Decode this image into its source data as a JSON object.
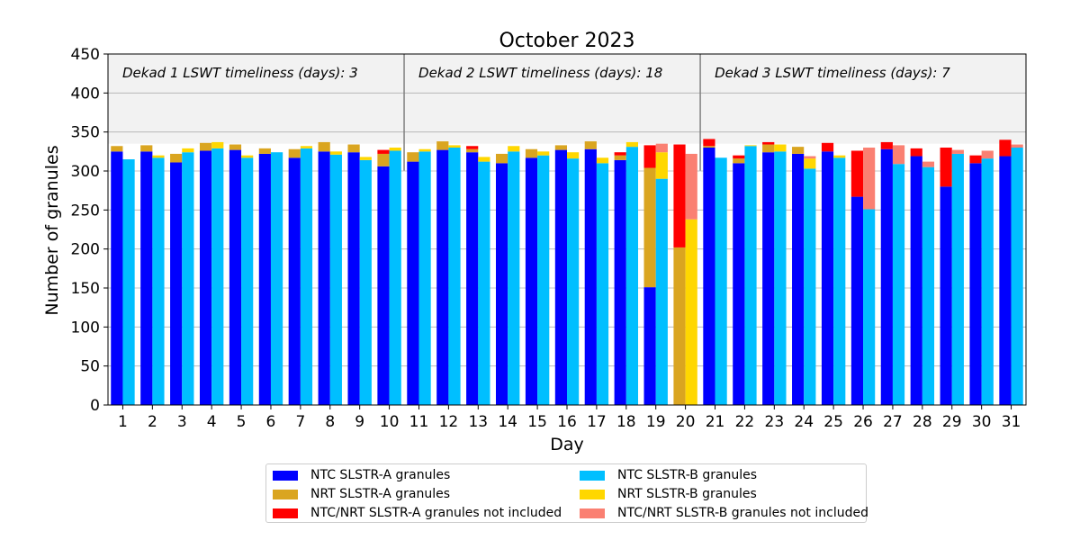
{
  "chart_data": {
    "type": "bar",
    "title": "October 2023",
    "xlabel": "Day",
    "ylabel": "Number of granules",
    "ylim": [
      0,
      450
    ],
    "yticks": [
      0,
      50,
      100,
      150,
      200,
      250,
      300,
      350,
      400,
      450
    ],
    "categories": [
      "1",
      "2",
      "3",
      "4",
      "5",
      "6",
      "7",
      "8",
      "9",
      "10",
      "11",
      "12",
      "13",
      "14",
      "15",
      "16",
      "17",
      "18",
      "19",
      "20",
      "21",
      "22",
      "23",
      "24",
      "25",
      "26",
      "27",
      "28",
      "29",
      "30",
      "31"
    ],
    "dekads": [
      {
        "label": "Dekad 1 LSWT timeliness (days): 3"
      },
      {
        "label": "Dekad 2 LSWT timeliness (days): 18"
      },
      {
        "label": "Dekad 3 LSWT timeliness (days): 7"
      }
    ],
    "dekad_band_ylim": [
      335,
      450
    ],
    "dekad_boundaries_after_day": [
      10,
      20
    ],
    "grid": true,
    "legend_position": "bottom-center",
    "colors": {
      "ntc_a": "#0000ff",
      "nrt_a": "#daa520",
      "excl_a": "#ff0000",
      "ntc_b": "#00bfff",
      "nrt_b": "#ffd700",
      "excl_b": "#fa8072",
      "band": "#f2f2f2",
      "divider": "#808080"
    },
    "series": [
      {
        "name": "NTC SLSTR-A granules",
        "key": "ntc_a",
        "values": [
          325,
          325,
          311,
          326,
          327,
          322,
          317,
          325,
          324,
          306,
          312,
          327,
          324,
          310,
          317,
          327,
          328,
          314,
          151,
          0,
          330,
          310,
          324,
          322,
          325,
          267,
          328,
          319,
          280,
          310,
          319
        ]
      },
      {
        "name": "NRT SLSTR-A granules",
        "key": "nrt_a",
        "values": [
          7,
          8,
          11,
          10,
          7,
          7,
          11,
          12,
          10,
          16,
          12,
          11,
          4,
          12,
          11,
          6,
          10,
          6,
          153,
          202,
          2,
          6,
          10,
          9,
          0,
          0,
          0,
          0,
          0,
          0,
          0
        ]
      },
      {
        "name": "NTC/NRT SLSTR-A granules not included",
        "key": "excl_a",
        "values": [
          0,
          0,
          0,
          0,
          0,
          0,
          0,
          0,
          0,
          5,
          0,
          0,
          4,
          0,
          0,
          0,
          0,
          4,
          29,
          132,
          9,
          4,
          3,
          0,
          11,
          59,
          9,
          10,
          50,
          10,
          21
        ]
      },
      {
        "name": "NTC SLSTR-B granules",
        "key": "ntc_b",
        "values": [
          315,
          317,
          324,
          329,
          317,
          324,
          329,
          321,
          314,
          326,
          325,
          330,
          312,
          325,
          320,
          316,
          310,
          331,
          290,
          0,
          317,
          332,
          325,
          303,
          317,
          251,
          309,
          305,
          322,
          316,
          330
        ]
      },
      {
        "name": "NRT SLSTR-B granules",
        "key": "nrt_b",
        "values": [
          0,
          3,
          5,
          8,
          3,
          0,
          3,
          4,
          4,
          4,
          3,
          3,
          6,
          7,
          5,
          8,
          7,
          6,
          34,
          238,
          0,
          1,
          9,
          13,
          3,
          0,
          0,
          0,
          0,
          0,
          0
        ]
      },
      {
        "name": "NTC/NRT SLSTR-B granules not included",
        "key": "excl_b",
        "values": [
          0,
          0,
          0,
          0,
          0,
          0,
          0,
          0,
          0,
          0,
          0,
          0,
          0,
          0,
          0,
          0,
          0,
          0,
          11,
          84,
          0,
          0,
          0,
          3,
          0,
          79,
          24,
          7,
          5,
          10,
          4
        ]
      }
    ]
  }
}
